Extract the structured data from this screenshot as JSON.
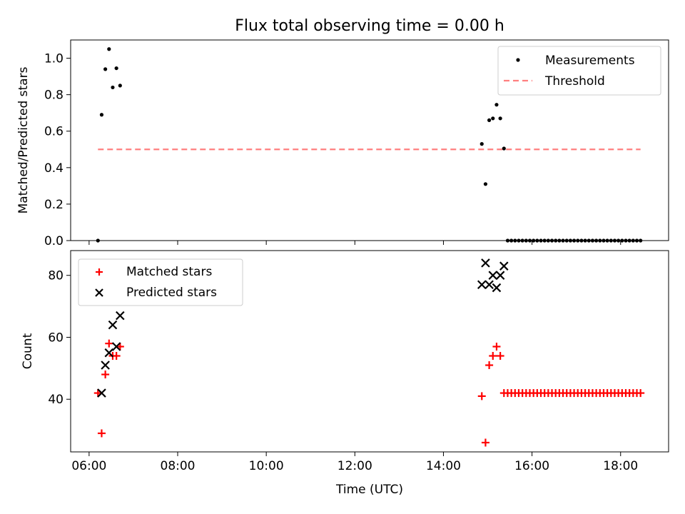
{
  "figure": {
    "title": "Flux total observing time = 0.00 h"
  },
  "chart_data": [
    {
      "type": "scatter",
      "ylabel": "Matched/Predicted stars",
      "xlabel": "",
      "xlim": [
        "05:35",
        "19:05"
      ],
      "ylim": [
        0.0,
        1.1
      ],
      "y_ticks": [
        0.0,
        0.2,
        0.4,
        0.6,
        0.8,
        1.0
      ],
      "y_tick_labels": [
        "0.0",
        "0.2",
        "0.4",
        "0.6",
        "0.8",
        "1.0"
      ],
      "x_ticks": [
        "06:00",
        "08:00",
        "10:00",
        "12:00",
        "14:00",
        "16:00",
        "18:00"
      ],
      "x_tick_labels_shown": false,
      "legend_position": "top-right",
      "series": [
        {
          "name": "Measurements",
          "kind": "scatter",
          "marker": "dot",
          "color": "#000000",
          "x": [
            "06:12",
            "06:17",
            "06:22",
            "06:27",
            "06:32",
            "06:37",
            "06:42",
            "14:52",
            "14:57",
            "15:02",
            "15:07",
            "15:12",
            "15:17",
            "15:22",
            "15:27",
            "15:32",
            "15:37",
            "15:42",
            "15:47",
            "15:52",
            "15:57",
            "16:02",
            "16:07",
            "16:12",
            "16:17",
            "16:22",
            "16:27",
            "16:32",
            "16:37",
            "16:42",
            "16:47",
            "16:52",
            "16:57",
            "17:02",
            "17:07",
            "17:12",
            "17:17",
            "17:22",
            "17:27",
            "17:32",
            "17:37",
            "17:42",
            "17:47",
            "17:52",
            "17:57",
            "18:02",
            "18:07",
            "18:12",
            "18:17",
            "18:22",
            "18:27"
          ],
          "y": [
            0.0,
            0.69,
            0.94,
            1.05,
            0.84,
            0.945,
            0.85,
            0.53,
            0.31,
            0.66,
            0.67,
            0.745,
            0.67,
            0.505,
            0.0,
            0.0,
            0.0,
            0.0,
            0.0,
            0.0,
            0.0,
            0.0,
            0.0,
            0.0,
            0.0,
            0.0,
            0.0,
            0.0,
            0.0,
            0.0,
            0.0,
            0.0,
            0.0,
            0.0,
            0.0,
            0.0,
            0.0,
            0.0,
            0.0,
            0.0,
            0.0,
            0.0,
            0.0,
            0.0,
            0.0,
            0.0,
            0.0,
            0.0,
            0.0,
            0.0,
            0.0
          ]
        },
        {
          "name": "Threshold",
          "kind": "line",
          "style": "dashed",
          "color": "#ff7f7f",
          "x": [
            "06:12",
            "18:27"
          ],
          "y": [
            0.5,
            0.5
          ]
        }
      ]
    },
    {
      "type": "scatter",
      "ylabel": "Count",
      "xlabel": "Time (UTC)",
      "xlim": [
        "05:35",
        "19:05"
      ],
      "ylim": [
        23,
        88
      ],
      "y_ticks": [
        40,
        60,
        80
      ],
      "y_tick_labels": [
        "40",
        "60",
        "80"
      ],
      "x_ticks": [
        "06:00",
        "08:00",
        "10:00",
        "12:00",
        "14:00",
        "16:00",
        "18:00"
      ],
      "x_tick_labels": [
        "06:00",
        "08:00",
        "10:00",
        "12:00",
        "14:00",
        "16:00",
        "18:00"
      ],
      "legend_position": "top-left",
      "series": [
        {
          "name": "Matched stars",
          "kind": "scatter",
          "marker": "plus",
          "color": "#ff0000",
          "x": [
            "06:12",
            "06:17",
            "06:22",
            "06:27",
            "06:32",
            "06:37",
            "06:42",
            "14:52",
            "14:57",
            "15:02",
            "15:07",
            "15:12",
            "15:17",
            "15:22",
            "15:27",
            "15:32",
            "15:37",
            "15:42",
            "15:47",
            "15:52",
            "15:57",
            "16:02",
            "16:07",
            "16:12",
            "16:17",
            "16:22",
            "16:27",
            "16:32",
            "16:37",
            "16:42",
            "16:47",
            "16:52",
            "16:57",
            "17:02",
            "17:07",
            "17:12",
            "17:17",
            "17:22",
            "17:27",
            "17:32",
            "17:37",
            "17:42",
            "17:47",
            "17:52",
            "17:57",
            "18:02",
            "18:07",
            "18:12",
            "18:17",
            "18:22",
            "18:27"
          ],
          "y": [
            42,
            29,
            48,
            58,
            54,
            54,
            57,
            41,
            26,
            51,
            54,
            57,
            54,
            42,
            42,
            42,
            42,
            42,
            42,
            42,
            42,
            42,
            42,
            42,
            42,
            42,
            42,
            42,
            42,
            42,
            42,
            42,
            42,
            42,
            42,
            42,
            42,
            42,
            42,
            42,
            42,
            42,
            42,
            42,
            42,
            42,
            42,
            42,
            42,
            42,
            42
          ]
        },
        {
          "name": "Predicted stars",
          "kind": "scatter",
          "marker": "x",
          "color": "#000000",
          "x": [
            "06:17",
            "06:22",
            "06:27",
            "06:32",
            "06:37",
            "06:42",
            "14:52",
            "14:57",
            "15:02",
            "15:07",
            "15:12",
            "15:17",
            "15:22"
          ],
          "y": [
            42,
            51,
            55,
            64,
            57,
            67,
            77,
            84,
            77,
            80,
            76,
            80,
            83
          ]
        }
      ]
    }
  ]
}
